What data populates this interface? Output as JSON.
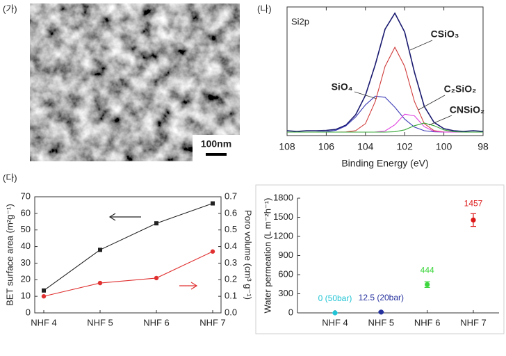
{
  "panel_labels": [
    "(가)",
    "(나)",
    "(다)"
  ],
  "image": {
    "scale_bar_label": "100nm"
  },
  "chart_data": [
    {
      "type": "line",
      "title": "Si2p",
      "xlabel": "Binding Energy (eV)",
      "x": [
        108,
        107.5,
        107,
        106.5,
        106,
        105.5,
        105,
        104.5,
        104,
        103.5,
        103,
        102.5,
        102,
        101.5,
        101,
        100.5,
        100,
        99.5,
        99,
        98.5,
        98
      ],
      "xlim": [
        108,
        98
      ],
      "xticks": [
        108,
        106,
        104,
        102,
        100,
        98
      ],
      "ylim": [
        -5,
        180
      ],
      "series": [
        {
          "color": "#1a1a70",
          "values": [
            2,
            1,
            2,
            2,
            2.5,
            4,
            10,
            25,
            53,
            97,
            148,
            171,
            144,
            86,
            37,
            14,
            5,
            2,
            1,
            2,
            1
          ]
        },
        {
          "name": "SiO₄",
          "color": "#3b3bb5",
          "values": [
            0,
            0,
            0,
            0.1,
            0.6,
            2.7,
            8.9,
            21.8,
            39.2,
            51.7,
            50.1,
            35.7,
            18.7,
            7.2,
            2,
            0.4,
            0.1,
            0,
            0,
            0,
            0
          ]
        },
        {
          "name": "CSiO₃",
          "color": "#d03a3a",
          "values": [
            0,
            0,
            0,
            0,
            0,
            0,
            0.2,
            2.1,
            12.2,
            44,
            94.5,
            122,
            94.5,
            44,
            12.2,
            2.1,
            0.2,
            0,
            0,
            0,
            0
          ]
        },
        {
          "name": "C₂SiO₂",
          "color": "#e040e0",
          "values": [
            0,
            0,
            0,
            0,
            0,
            0,
            0,
            0,
            0,
            0.1,
            1.6,
            10.5,
            25.8,
            23.4,
            7.8,
            1,
            0,
            0,
            0,
            0,
            0
          ]
        },
        {
          "name": "CNSiO₂",
          "color": "#38a838",
          "values": [
            0,
            0,
            0,
            0,
            0,
            0,
            0,
            0,
            0,
            0,
            0,
            0.6,
            3.2,
            9.2,
            13,
            9.2,
            3.2,
            0.6,
            0,
            0,
            0
          ]
        }
      ]
    },
    {
      "type": "line",
      "categories": [
        "NHF 4",
        "NHF 5",
        "NHF 6",
        "NHF 7"
      ],
      "ylabel": "BET surface area (m²g⁻¹)",
      "y2label": "Poro volume (cm³ g⁻¹)",
      "ylim": [
        0,
        70
      ],
      "yticks": [
        0,
        10,
        20,
        30,
        40,
        50,
        60,
        70
      ],
      "y2lim": [
        0,
        0.7
      ],
      "y2ticks": [
        {
          "value": 0,
          "label": "0.0"
        },
        0.1,
        0.2,
        0.3,
        0.4,
        0.5,
        0.6,
        0.7
      ],
      "series": [
        {
          "color": "#222222",
          "marker": "square",
          "values": [
            13.5,
            38,
            54,
            66
          ]
        },
        {
          "color": "#e03030",
          "marker": "circle",
          "axis": "y2",
          "values": [
            0.1,
            0.18,
            0.21,
            0.37
          ]
        }
      ]
    },
    {
      "type": "scatter",
      "categories": [
        "NHF 4",
        "NHF 5",
        "NHF 6",
        "NHF 7"
      ],
      "ylabel": "Water permeation (L m⁻²h⁻¹)",
      "ylim": [
        0,
        1800
      ],
      "yticks": [
        0,
        300,
        600,
        900,
        1200,
        1500,
        1800
      ],
      "values": [
        0,
        12.5,
        444,
        1457
      ],
      "errors": [
        0,
        10,
        45,
        100
      ],
      "value_labels": [
        "0 (50bar)",
        "12.5 (20bar)",
        "444",
        "1457"
      ],
      "colors": [
        "#20c4d4",
        "#24309c",
        "#3ed63e",
        "#dd1818"
      ]
    }
  ]
}
